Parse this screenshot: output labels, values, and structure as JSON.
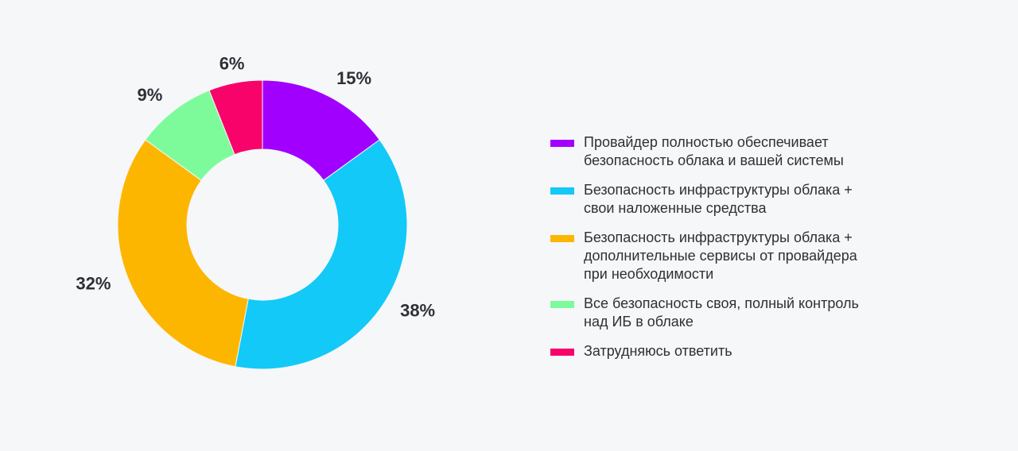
{
  "chart_data": {
    "type": "pie",
    "title": "",
    "donut": true,
    "legend_position": "right",
    "slices": [
      {
        "label": "Провайдер полностью обеспечивает\nбезопасность облака и вашей системы",
        "value": 15,
        "value_label": "15%",
        "color": "#a100ff"
      },
      {
        "label": "Безопасность инфраструктуры облака +\nсвои наложенные средства",
        "value": 38,
        "value_label": "38%",
        "color": "#12c9f7"
      },
      {
        "label": "Безопасность инфраструктуры облака +\nдополнительные сервисы от провайдера\nпри необходимости",
        "value": 32,
        "value_label": "32%",
        "color": "#fdb600"
      },
      {
        "label": "Все безопасность своя, полный контроль\nнад ИБ в облаке",
        "value": 9,
        "value_label": "9%",
        "color": "#7dfb9b"
      },
      {
        "label": "Затрудняюсь ответить",
        "value": 6,
        "value_label": "6%",
        "color": "#f7036a"
      }
    ]
  }
}
